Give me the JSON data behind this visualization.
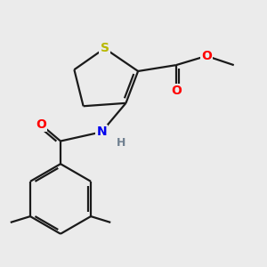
{
  "background_color": "#ebebeb",
  "atom_colors": {
    "S": "#b8b800",
    "O": "#ff0000",
    "N": "#0000ee",
    "H": "#708090",
    "C": "#000000"
  },
  "bond_color": "#1a1a1a",
  "bond_width": 1.6,
  "font_size_atom": 10,
  "font_size_methyl": 9
}
